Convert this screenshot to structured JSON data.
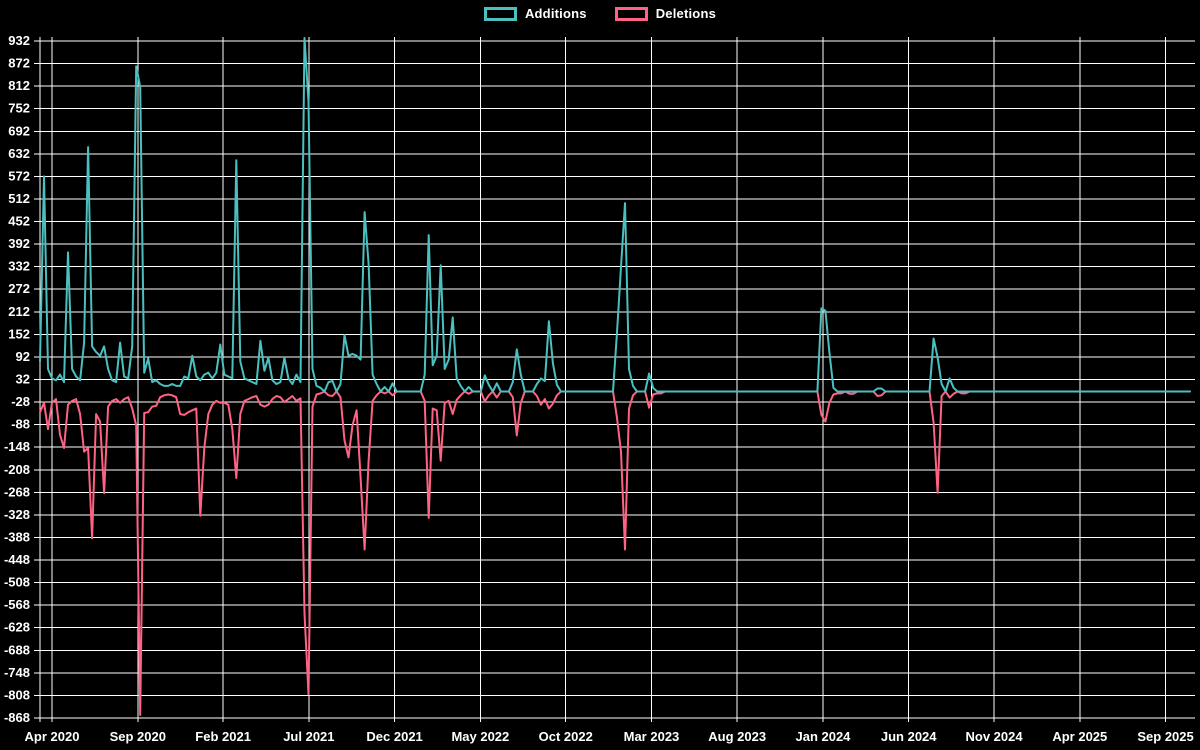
{
  "chart_data": {
    "type": "line",
    "title": "",
    "legend_position": "top",
    "grid": true,
    "colors": {
      "background": "#000000",
      "grid": "#ffffff",
      "text": "#ffffff"
    },
    "legend": [
      {
        "label": "Additions",
        "color": "#4bc0c0"
      },
      {
        "label": "Deletions",
        "color": "#ff6384"
      }
    ],
    "y_axis": {
      "max": 932,
      "min": -868,
      "ticks": [
        932,
        872,
        812,
        752,
        692,
        632,
        572,
        512,
        452,
        392,
        332,
        272,
        212,
        152,
        92,
        32,
        -28,
        -88,
        -148,
        -208,
        -268,
        -328,
        -388,
        -448,
        -508,
        -568,
        -628,
        -688,
        -748,
        -808,
        -868
      ]
    },
    "x_axis": {
      "labels": [
        "Apr 2020",
        "Sep 2020",
        "Feb 2021",
        "Jul 2021",
        "Dec 2021",
        "May 2022",
        "Oct 2022",
        "Mar 2023",
        "Aug 2023",
        "Jan 2024",
        "Jun 2024",
        "Nov 2024",
        "Apr 2025",
        "Sep 2025"
      ],
      "label_weeks": [
        3,
        24.4,
        45.7,
        67.1,
        88.5,
        109.9,
        131.2,
        152.6,
        174,
        195.4,
        216.8,
        238.1,
        259.5,
        280.9
      ]
    },
    "weeks_total": 288,
    "series": [
      {
        "name": "Additions",
        "color": "#4bc0c0",
        "default": 0,
        "points_by_week": {
          "0": 80,
          "1": 572,
          "2": 60,
          "3": 35,
          "4": 30,
          "5": 45,
          "6": 25,
          "7": 370,
          "8": 60,
          "9": 40,
          "10": 30,
          "11": 130,
          "12": 650,
          "13": 120,
          "14": 105,
          "15": 95,
          "16": 120,
          "17": 60,
          "18": 30,
          "19": 25,
          "20": 130,
          "21": 40,
          "22": 35,
          "23": 120,
          "24": 865,
          "25": 810,
          "26": 50,
          "27": 88,
          "28": 25,
          "29": 30,
          "30": 20,
          "31": 15,
          "32": 15,
          "33": 20,
          "34": 15,
          "35": 15,
          "36": 40,
          "37": 35,
          "38": 95,
          "39": 40,
          "40": 30,
          "41": 45,
          "42": 50,
          "43": 35,
          "44": 50,
          "45": 125,
          "46": 45,
          "47": 40,
          "48": 35,
          "49": 615,
          "50": 80,
          "51": 35,
          "52": 30,
          "53": 25,
          "54": 20,
          "55": 135,
          "56": 55,
          "57": 90,
          "58": 30,
          "59": 20,
          "60": 25,
          "61": 90,
          "62": 35,
          "63": 20,
          "64": 45,
          "65": 25,
          "66": 940,
          "67": 770,
          "68": 60,
          "69": 15,
          "70": 10,
          "72": 25,
          "73": 28,
          "75": 20,
          "76": 150,
          "77": 95,
          "78": 100,
          "79": 95,
          "80": 85,
          "81": 477,
          "82": 340,
          "83": 45,
          "84": 20,
          "86": 12,
          "88": 22,
          "96": 45,
          "97": 416,
          "98": 70,
          "99": 95,
          "100": 336,
          "101": 60,
          "102": 85,
          "103": 197,
          "104": 35,
          "105": 15,
          "107": 12,
          "111": 43,
          "112": 18,
          "114": 22,
          "118": 25,
          "119": 112,
          "120": 45,
          "124": 20,
          "125": 35,
          "126": 28,
          "127": 187,
          "128": 75,
          "129": 18,
          "144": 157,
          "145": 331,
          "146": 501,
          "147": 60,
          "148": 15,
          "152": 48,
          "153": 10,
          "195": 221,
          "196": 215,
          "197": 104,
          "198": 10,
          "209": 8,
          "210": 8,
          "223": 141,
          "224": 91,
          "225": 20,
          "227": 35,
          "228": 10
        }
      },
      {
        "name": "Deletions",
        "color": "#ff6384",
        "default": 0,
        "points_by_week": {
          "0": -55,
          "1": -30,
          "2": -100,
          "3": -30,
          "4": -20,
          "5": -115,
          "6": -150,
          "7": -35,
          "8": -25,
          "9": -20,
          "10": -60,
          "11": -160,
          "12": -150,
          "13": -390,
          "14": -60,
          "15": -80,
          "16": -270,
          "17": -40,
          "18": -25,
          "19": -20,
          "20": -30,
          "21": -20,
          "22": -15,
          "23": -45,
          "24": -90,
          "25": -860,
          "26": -57,
          "27": -55,
          "28": -40,
          "29": -38,
          "30": -15,
          "31": -10,
          "32": -8,
          "33": -10,
          "34": -15,
          "35": -60,
          "36": -62,
          "37": -55,
          "38": -50,
          "39": -45,
          "40": -330,
          "41": -150,
          "42": -60,
          "43": -35,
          "44": -25,
          "45": -30,
          "46": -30,
          "47": -35,
          "48": -100,
          "49": -230,
          "50": -60,
          "51": -25,
          "52": -20,
          "53": -15,
          "54": -12,
          "55": -35,
          "56": -40,
          "57": -35,
          "58": -20,
          "59": -12,
          "60": -15,
          "61": -28,
          "62": -20,
          "63": -12,
          "64": -25,
          "65": -18,
          "66": -590,
          "67": -805,
          "68": -40,
          "69": -8,
          "70": -5,
          "72": -10,
          "73": -12,
          "75": -15,
          "76": -130,
          "77": -175,
          "78": -90,
          "79": -50,
          "80": -230,
          "81": -420,
          "82": -185,
          "83": -25,
          "84": -10,
          "86": -5,
          "88": -10,
          "96": -25,
          "97": -336,
          "98": -45,
          "99": -50,
          "100": -184,
          "101": -30,
          "102": -25,
          "103": -60,
          "104": -22,
          "105": -10,
          "107": -6,
          "111": -26,
          "112": -10,
          "114": -16,
          "118": -15,
          "119": -117,
          "120": -30,
          "124": -12,
          "125": -35,
          "126": -20,
          "127": -45,
          "128": -32,
          "129": -10,
          "144": -70,
          "145": -160,
          "146": -420,
          "147": -45,
          "148": -10,
          "152": -43,
          "153": -8,
          "154": -5,
          "155": -5,
          "195": -62,
          "196": -80,
          "197": -30,
          "198": -8,
          "199": -5,
          "200": -5,
          "202": -6,
          "203": -6,
          "209": -12,
          "210": -10,
          "223": -83,
          "224": -269,
          "225": -12,
          "227": -16,
          "228": -6,
          "230": -5,
          "231": -5
        }
      }
    ]
  }
}
